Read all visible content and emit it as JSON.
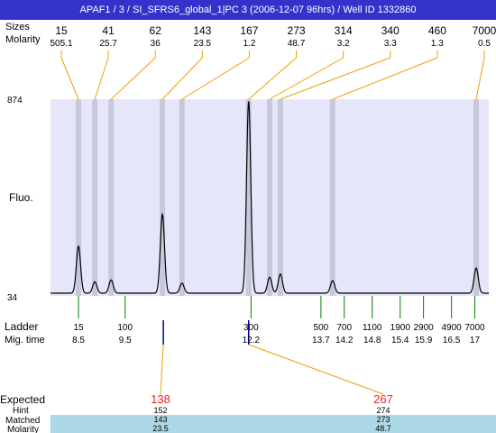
{
  "header": {
    "title": "APAF1 / 3 / SI_SFRS6_global_1|PC 3 (2006-12-07 96hrs) / Well ID 1332860"
  },
  "labels": {
    "sizes": "Sizes",
    "molarity": "Molarity",
    "fluo": "Fluo.",
    "ladder": "Ladder",
    "mig_time": "Mig. time",
    "expected": "Expected",
    "hint": "Hint",
    "matched": "Matched",
    "molarity_bottom": "Molarity"
  },
  "colors": {
    "header_bg": "#3333cc",
    "plot_bg": "#e6e6fa",
    "band": "#c8c8dc",
    "connector": "#f0a000",
    "ladder_tick": "#008000",
    "expected_text": "#ee2222",
    "match_bg": "#add8e6",
    "trace": "#000000"
  },
  "chart_data": {
    "type": "line",
    "title": "",
    "ylabel": "Fluo.",
    "y_ticks": [
      "874",
      "34"
    ],
    "ylim": [
      34,
      874
    ],
    "xlim": [
      7.9,
      17.3
    ],
    "peaks": [
      {
        "size": "15",
        "molarity": "505.1",
        "time": 8.5,
        "height": 205
      },
      {
        "size": "41",
        "molarity": "25.7",
        "time": 8.85,
        "height": 50
      },
      {
        "size": "62",
        "molarity": "36",
        "time": 9.2,
        "height": 58
      },
      {
        "size": "143",
        "molarity": "23.5",
        "time": 10.3,
        "height": 345
      },
      {
        "size": "167",
        "molarity": "1.2",
        "time": 10.72,
        "height": 44
      },
      {
        "size": "273",
        "molarity": "48.7",
        "time": 12.15,
        "height": 840
      },
      {
        "size": "314",
        "molarity": "3.2",
        "time": 12.6,
        "height": 70
      },
      {
        "size": "340",
        "molarity": "3.3",
        "time": 12.83,
        "height": 84
      },
      {
        "size": "460",
        "molarity": "1.3",
        "time": 13.95,
        "height": 55
      },
      {
        "size": "7000",
        "molarity": "0.5",
        "time": 17.03,
        "height": 110
      }
    ],
    "ladder": [
      {
        "size": "15",
        "time": "8.5"
      },
      {
        "size": "100",
        "time": "9.5"
      },
      {
        "size": "300",
        "time": "12.2"
      },
      {
        "size": "500",
        "time": "13.7"
      },
      {
        "size": "700",
        "time": "14.2"
      },
      {
        "size": "1100",
        "time": "14.8"
      },
      {
        "size": "1900",
        "time": "15.4"
      },
      {
        "size": "2900",
        "time": "15.9"
      },
      {
        "size": "4900",
        "time": "16.5"
      },
      {
        "size": "7000",
        "time": "17"
      }
    ],
    "expected": [
      {
        "expected": "138",
        "hint": "152",
        "matched": "143",
        "molarity": "23.5",
        "time": 10.32
      },
      {
        "expected": "267",
        "hint": "274",
        "matched": "273",
        "molarity": "48.7",
        "time": 12.15
      }
    ]
  }
}
